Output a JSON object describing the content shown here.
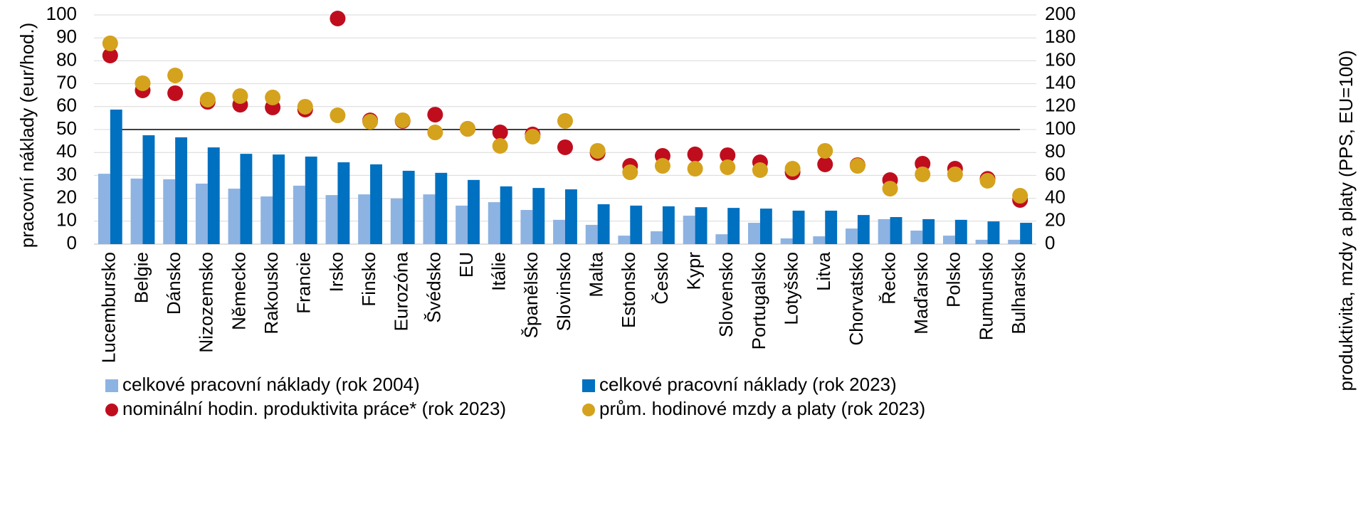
{
  "chart_data": {
    "type": "combo",
    "categories": [
      "Lucembursko",
      "Belgie",
      "Dánsko",
      "Nizozemsko",
      "Německo",
      "Rakousko",
      "Francie",
      "Irsko",
      "Finsko",
      "Eurozóna",
      "Švédsko",
      "EU",
      "Itálie",
      "Španělsko",
      "Slovinsko",
      "Malta",
      "Estonsko",
      "Česko",
      "Kypr",
      "Slovensko",
      "Portugalsko",
      "Lotyšsko",
      "Litva",
      "Chorvatsko",
      "Řecko",
      "Maďarsko",
      "Polsko",
      "Rumunsko",
      "Bulharsko"
    ],
    "series": [
      {
        "name": "celkové pracovní náklady (rok 2004)",
        "type": "bar",
        "color": "#8db3e2",
        "values": [
          30.7,
          28.6,
          28.3,
          26.4,
          24.2,
          20.8,
          25.5,
          21.4,
          21.7,
          19.9,
          21.7,
          16.8,
          18.3,
          14.9,
          10.6,
          8.4,
          3.7,
          5.6,
          12.4,
          4.3,
          9.3,
          2.5,
          3.4,
          6.8,
          10.9,
          5.9,
          3.7,
          1.9,
          1.9
        ]
      },
      {
        "name": "celkové pracovní náklady (rok 2023)",
        "type": "bar",
        "color": "#0070c0",
        "values": [
          58.7,
          47.5,
          46.6,
          42.2,
          39.4,
          39.1,
          38.2,
          35.7,
          34.8,
          32.0,
          31.1,
          28.0,
          25.2,
          24.5,
          23.9,
          17.4,
          16.8,
          16.5,
          16.1,
          15.8,
          15.5,
          14.6,
          14.6,
          12.7,
          11.8,
          10.9,
          10.6,
          9.9,
          9.3
        ]
      },
      {
        "name": "nominální hodin. produktivita práce* (rok 2023)",
        "type": "scatter",
        "axis": "y2",
        "color": "#c00d1e",
        "values": [
          164.6,
          134.2,
          131.7,
          124.2,
          121.7,
          119.3,
          117.4,
          196.9,
          108,
          107.5,
          113,
          100.6,
          97.5,
          95.7,
          84.5,
          79.5,
          68.3,
          77,
          78.3,
          77.6,
          71.4,
          62.7,
          69.6,
          68.9,
          55.9,
          70.2,
          65.8,
          57,
          38.5
        ]
      },
      {
        "name": "prům. hodinové mzdy a platy (rok 2023)",
        "type": "scatter",
        "axis": "y2",
        "color": "#d4a21c",
        "values": [
          175.2,
          140.4,
          147.2,
          126.1,
          129.2,
          128,
          119.9,
          112.4,
          106.8,
          108.1,
          97.5,
          100.6,
          85.7,
          93.8,
          107.5,
          81.4,
          62.7,
          68.3,
          65.8,
          67.1,
          64.6,
          65.8,
          81.4,
          68.3,
          48.4,
          60.9,
          60.9,
          55.3,
          42.2
        ]
      }
    ],
    "y_label": "pracovní náklady (eur/hod.)",
    "y2_label": "produktivita, mzdy a platy (PPS, EU=100)",
    "ylim": [
      0,
      100
    ],
    "yticks": [
      0,
      10,
      20,
      30,
      40,
      50,
      60,
      70,
      80,
      90,
      100
    ],
    "y2lim": [
      0,
      200
    ],
    "y2ticks": [
      0,
      20,
      40,
      60,
      80,
      100,
      120,
      140,
      160,
      180,
      200
    ],
    "reference_line": {
      "value": 100,
      "axis": "y2"
    },
    "grid": true,
    "legend": "bottom"
  }
}
